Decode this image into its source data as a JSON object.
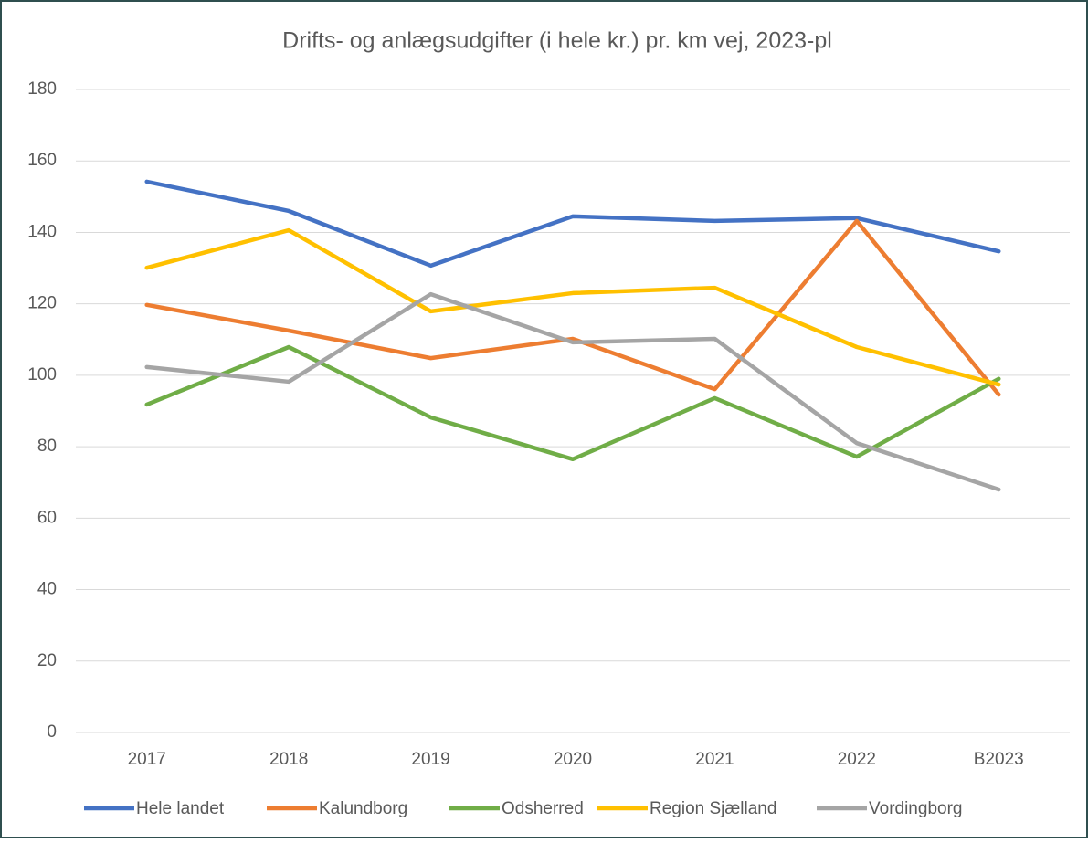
{
  "chart_data": {
    "type": "line",
    "title": "Drifts- og anlægsudgifter (i hele kr.) pr. km vej, 2023-pl",
    "categories": [
      "2017",
      "2018",
      "2019",
      "2020",
      "2021",
      "2022",
      "B2023"
    ],
    "series": [
      {
        "name": "Hele landet",
        "color": "#4472c4",
        "values": [
          154.2,
          146,
          130.7,
          144.5,
          143.2,
          144,
          134.7
        ]
      },
      {
        "name": "Kalundborg",
        "color": "#ed7d31",
        "values": [
          119.7,
          112.5,
          104.8,
          110.2,
          96.1,
          143.2,
          94.6
        ]
      },
      {
        "name": "Odsherred",
        "color": "#70ad47",
        "values": [
          91.8,
          107.9,
          88.2,
          76.5,
          93.6,
          77.2,
          99
        ]
      },
      {
        "name": "Region Sjælland",
        "color": "#ffc000",
        "values": [
          130.1,
          140.6,
          117.9,
          123,
          124.5,
          107.9,
          97.4
        ]
      },
      {
        "name": "Vordingborg",
        "color": "#a5a5a5",
        "values": [
          102.3,
          98.2,
          122.7,
          109.2,
          110.2,
          81,
          68
        ]
      }
    ],
    "ylim": [
      0,
      180
    ],
    "yticks": [
      0,
      20,
      40,
      60,
      80,
      100,
      120,
      140,
      160,
      180
    ],
    "grid": true,
    "legend": "bottom"
  }
}
